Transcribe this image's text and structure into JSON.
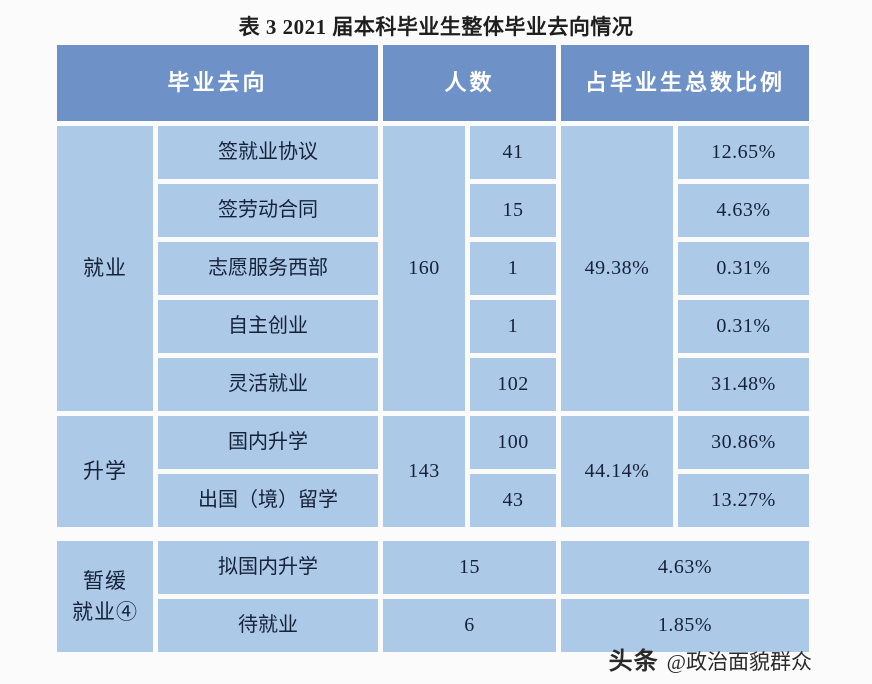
{
  "colors": {
    "header_bg": "#6e92c7",
    "cell_bg": "#adc9e8",
    "header_text": "#ffffff",
    "body_text": "#152238"
  },
  "chart_data": {
    "type": "table",
    "title": "表 3 2021 届本科毕业生整体毕业去向情况",
    "columns": [
      "毕业去向",
      "人数",
      "占毕业生总数比例"
    ],
    "groups": [
      {
        "name": "就业",
        "total_count": "160",
        "total_ratio": "49.38%",
        "rows": [
          {
            "label": "签就业协议",
            "count": "41",
            "ratio": "12.65%"
          },
          {
            "label": "签劳动合同",
            "count": "15",
            "ratio": "4.63%"
          },
          {
            "label": "志愿服务西部",
            "count": "1",
            "ratio": "0.31%"
          },
          {
            "label": "自主创业",
            "count": "1",
            "ratio": "0.31%"
          },
          {
            "label": "灵活就业",
            "count": "102",
            "ratio": "31.48%"
          }
        ]
      },
      {
        "name": "升学",
        "total_count": "143",
        "total_ratio": "44.14%",
        "rows": [
          {
            "label": "国内升学",
            "count": "100",
            "ratio": "30.86%"
          },
          {
            "label": "出国（境）留学",
            "count": "43",
            "ratio": "13.27%"
          }
        ]
      },
      {
        "name": "暂缓\n就业④",
        "rows": [
          {
            "label": "拟国内升学",
            "count": "15",
            "ratio": "4.63%"
          },
          {
            "label": "待就业",
            "count": "6",
            "ratio": "1.85%"
          }
        ]
      }
    ]
  },
  "watermark": {
    "logo": "头条",
    "handle": "@政治面貌群众"
  }
}
